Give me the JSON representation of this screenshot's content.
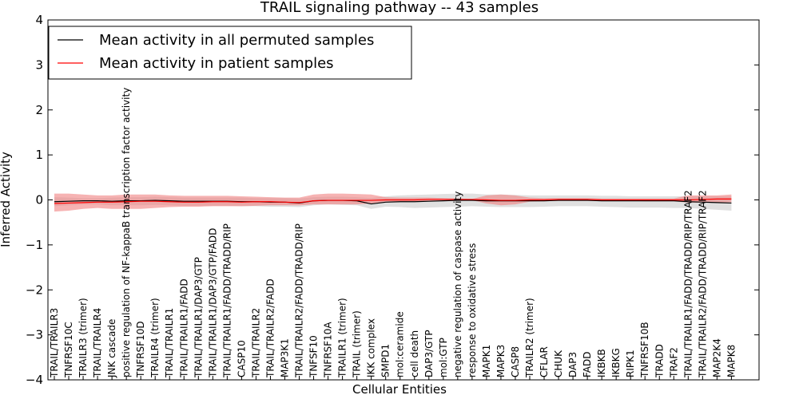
{
  "chart_data": {
    "type": "line",
    "title": "TRAIL signaling pathway -- 43 samples",
    "xlabel": "Cellular Entities",
    "ylabel": "Inferred Activity",
    "ylim": [
      -4,
      4
    ],
    "yticks": [
      -4,
      -3,
      -2,
      -1,
      0,
      1,
      2,
      3,
      4
    ],
    "ytick_labels": [
      "−4",
      "−3",
      "−2",
      "−1",
      "0",
      "1",
      "2",
      "3",
      "4"
    ],
    "legend_position": "top-left",
    "grid": false,
    "categories": [
      "TRAIL/TRAILR3",
      "TNFRSF10C",
      "TRAILR3 (trimer)",
      "TRAIL/TRAILR4",
      "JNK cascade",
      "positive regulation of NF-kappaB transcription factor activity",
      "TNFRSF10D",
      "TRAILR4 (trimer)",
      "TRAIL/TRAILR1",
      "TRAIL/TRAILR1/FADD",
      "TRAIL/TRAILR1/DAP3/GTP",
      "TRAIL/TRAILR1/DAP3/GTP/FADD",
      "TRAIL/TRAILR1/FADD/TRADD/RIP",
      "CASP10",
      "TRAIL/TRAILR2",
      "TRAIL/TRAILR2/FADD",
      "MAP3K1",
      "TRAIL/TRAILR2/FADD/TRADD/RIP",
      "TNFSF10",
      "TNFRSF10A",
      "TRAILR1 (trimer)",
      "TRAIL (trimer)",
      "IKK complex",
      "SMPD1",
      "mol:ceramide",
      "cell death",
      "DAP3/GTP",
      "mol:GTP",
      "negative regulation of caspase activity",
      "response to oxidative stress",
      "MAPK1",
      "MAPK3",
      "CASP8",
      "TRAILR2 (trimer)",
      "CFLAR",
      "CHUK",
      "DAP3",
      "FADD",
      "IKBKB",
      "IKBKG",
      "RIPK1",
      "TNFRSF10B",
      "TRADD",
      "TRAF2",
      "TRAIL/TRAILR1/FADD/TRADD/RIP/TRAF2",
      "TRAIL/TRAILR2/FADD/TRADD/RIP/TRAF2",
      "MAP2K4",
      "MAPK8"
    ],
    "series": [
      {
        "name": "Mean activity in all permuted samples",
        "color": "#000000",
        "fill_color": "#bbbbbb",
        "values": [
          -0.04,
          -0.03,
          -0.02,
          -0.02,
          -0.03,
          -0.02,
          -0.02,
          -0.01,
          -0.02,
          -0.03,
          -0.03,
          -0.03,
          -0.03,
          -0.04,
          -0.04,
          -0.05,
          -0.05,
          -0.07,
          -0.02,
          -0.01,
          -0.01,
          -0.02,
          -0.09,
          -0.05,
          -0.04,
          -0.04,
          -0.03,
          -0.02,
          -0.01,
          -0.01,
          -0.02,
          -0.02,
          -0.02,
          -0.02,
          -0.02,
          -0.01,
          -0.01,
          -0.01,
          -0.02,
          -0.02,
          -0.02,
          -0.02,
          -0.02,
          -0.02,
          -0.04,
          -0.05,
          -0.06,
          -0.07
        ],
        "upper": [
          0.06,
          0.05,
          0.04,
          0.04,
          0.05,
          0.06,
          0.06,
          0.07,
          0.06,
          0.05,
          0.05,
          0.05,
          0.05,
          0.05,
          0.04,
          0.04,
          0.04,
          0.03,
          0.06,
          0.07,
          0.07,
          0.06,
          0.04,
          0.08,
          0.1,
          0.11,
          0.12,
          0.13,
          0.14,
          0.14,
          0.12,
          0.12,
          0.11,
          0.1,
          0.1,
          0.1,
          0.1,
          0.1,
          0.09,
          0.09,
          0.08,
          0.08,
          0.08,
          0.08,
          0.08,
          0.08,
          0.08,
          0.08
        ],
        "lower": [
          -0.14,
          -0.12,
          -0.1,
          -0.1,
          -0.12,
          -0.12,
          -0.12,
          -0.11,
          -0.12,
          -0.13,
          -0.13,
          -0.13,
          -0.13,
          -0.14,
          -0.14,
          -0.15,
          -0.15,
          -0.16,
          -0.12,
          -0.1,
          -0.11,
          -0.12,
          -0.2,
          -0.15,
          -0.16,
          -0.18,
          -0.17,
          -0.16,
          -0.15,
          -0.14,
          -0.15,
          -0.16,
          -0.16,
          -0.16,
          -0.15,
          -0.14,
          -0.14,
          -0.14,
          -0.15,
          -0.16,
          -0.17,
          -0.17,
          -0.17,
          -0.18,
          -0.18,
          -0.2,
          -0.22,
          -0.24
        ]
      },
      {
        "name": "Mean activity in patient samples",
        "color": "#ff0000",
        "fill_color": "#f08080",
        "values": [
          -0.08,
          -0.07,
          -0.06,
          -0.05,
          -0.05,
          -0.04,
          -0.03,
          -0.03,
          -0.04,
          -0.05,
          -0.05,
          -0.04,
          -0.04,
          -0.05,
          -0.04,
          -0.04,
          -0.05,
          -0.06,
          -0.02,
          -0.01,
          -0.01,
          -0.01,
          -0.01,
          0.0,
          0.0,
          0.0,
          0.01,
          0.01,
          0.01,
          0.01,
          0.0,
          -0.01,
          -0.01,
          0.0,
          0.0,
          0.01,
          0.01,
          0.01,
          0.0,
          0.0,
          0.0,
          0.0,
          0.0,
          0.0,
          0.0,
          0.01,
          0.02,
          0.02
        ],
        "upper": [
          0.14,
          0.14,
          0.12,
          0.1,
          0.1,
          0.12,
          0.12,
          0.12,
          0.1,
          0.09,
          0.09,
          0.09,
          0.09,
          0.08,
          0.07,
          0.06,
          0.05,
          0.05,
          0.12,
          0.14,
          0.14,
          0.13,
          0.12,
          0.06,
          0.05,
          0.05,
          0.05,
          0.04,
          0.03,
          0.02,
          0.1,
          0.12,
          0.1,
          0.05,
          0.04,
          0.04,
          0.04,
          0.04,
          0.03,
          0.03,
          0.03,
          0.03,
          0.03,
          0.03,
          0.1,
          0.1,
          0.1,
          0.12
        ],
        "lower": [
          -0.26,
          -0.24,
          -0.2,
          -0.18,
          -0.2,
          -0.2,
          -0.2,
          -0.18,
          -0.16,
          -0.15,
          -0.15,
          -0.14,
          -0.14,
          -0.14,
          -0.13,
          -0.12,
          -0.12,
          -0.12,
          -0.1,
          -0.1,
          -0.1,
          -0.1,
          -0.08,
          -0.04,
          -0.04,
          -0.03,
          -0.02,
          -0.01,
          -0.01,
          -0.01,
          -0.08,
          -0.12,
          -0.1,
          -0.04,
          -0.03,
          -0.02,
          -0.02,
          -0.02,
          -0.02,
          -0.02,
          -0.02,
          -0.03,
          -0.03,
          -0.03,
          -0.06,
          -0.06,
          -0.06,
          -0.05
        ]
      }
    ]
  }
}
